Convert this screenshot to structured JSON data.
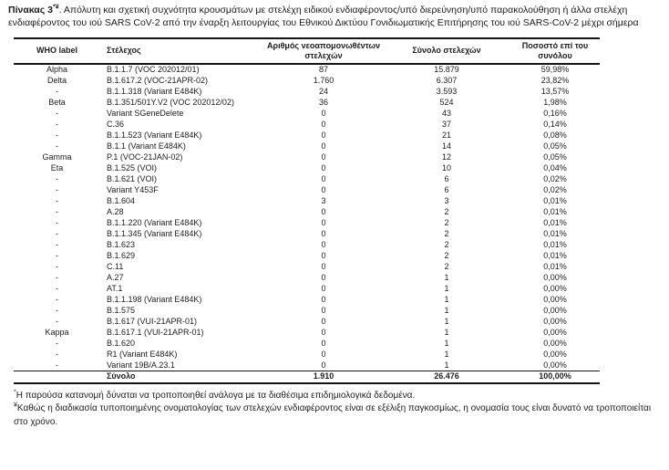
{
  "title": {
    "prefix": "Πίνακας 3",
    "sup": "*¥",
    "rest": ". Απόλυτη και σχετική συχνότητα κρουσμάτων με στελέχη ειδικού ενδιαφέροντος/υπό διερεύνηση/υπό παρακολούθηση ή άλλα στελέχη ενδιαφέροντος του ιού SARS CoV-2 από την έναρξη λειτουργίας του Εθνικού Δικτύου Γονιδιωματικής Επιτήρησης του ιού SARS-CoV-2 μέχρι σήμερα"
  },
  "table": {
    "columns": [
      "WHO label",
      "Στέλεχος",
      "Αριθμός νεοαπομονωθέντων στελεχών",
      "Σύνολο στελεχών",
      "Ποσοστό επί του συνόλου"
    ],
    "rows": [
      [
        "Alpha",
        "B.1.1.7 (VOC 202012/01)",
        "87",
        "15.879",
        "59,98%"
      ],
      [
        "Delta",
        "B.1.617.2 (VOC-21APR-02)",
        "1.760",
        "6.307",
        "23,82%"
      ],
      [
        "-",
        "B.1.1.318 (Variant E484K)",
        "24",
        "3.593",
        "13,57%"
      ],
      [
        "Beta",
        "B.1.351/501Y.V2 (VOC 202012/02)",
        "36",
        "524",
        "1,98%"
      ],
      [
        "-",
        "Variant SGeneDelete",
        "0",
        "43",
        "0,16%"
      ],
      [
        "-",
        "C.36",
        "0",
        "37",
        "0,14%"
      ],
      [
        "-",
        "B.1.1.523 (Variant E484K)",
        "0",
        "21",
        "0,08%"
      ],
      [
        "-",
        "B.1.1 (Variant E484K)",
        "0",
        "14",
        "0,05%"
      ],
      [
        "Gamma",
        "P.1 (VOC-21JAN-02)",
        "0",
        "12",
        "0,05%"
      ],
      [
        "Eta",
        "B.1.525 (VOI)",
        "0",
        "10",
        "0,04%"
      ],
      [
        "-",
        "B.1.621 (VOI)",
        "0",
        "6",
        "0,02%"
      ],
      [
        "-",
        "Variant Y453F",
        "0",
        "6",
        "0,02%"
      ],
      [
        "-",
        "B.1.604",
        "3",
        "3",
        "0,01%"
      ],
      [
        "-",
        "A.28",
        "0",
        "2",
        "0,01%"
      ],
      [
        "-",
        "B.1.1.220 (Variant E484K)",
        "0",
        "2",
        "0,01%"
      ],
      [
        "-",
        "B.1.1.345 (Variant E484K)",
        "0",
        "2",
        "0,01%"
      ],
      [
        "-",
        "B.1.623",
        "0",
        "2",
        "0,01%"
      ],
      [
        "-",
        "B.1.629",
        "0",
        "2",
        "0,01%"
      ],
      [
        "-",
        "C.11",
        "0",
        "2",
        "0,01%"
      ],
      [
        "-",
        "A.27",
        "0",
        "1",
        "0,00%"
      ],
      [
        "-",
        "AT.1",
        "0",
        "1",
        "0,00%"
      ],
      [
        "-",
        "B.1.1.198 (Variant E484K)",
        "0",
        "1",
        "0,00%"
      ],
      [
        "-",
        "B.1.575",
        "0",
        "1",
        "0,00%"
      ],
      [
        "-",
        "B.1.617 (VUI-21APR-01)",
        "0",
        "1",
        "0,00%"
      ],
      [
        "Kappa",
        "B.1.617.1 (VUI-21APR-01)",
        "0",
        "1",
        "0,00%"
      ],
      [
        "-",
        "B.1.620",
        "0",
        "1",
        "0,00%"
      ],
      [
        "-",
        "R1 (Variant E484K)",
        "0",
        "1",
        "0,00%"
      ],
      [
        "-",
        "Variant 19B/A.23.1",
        "0",
        "1",
        "0,00%"
      ]
    ],
    "total": {
      "label": "Σύνολο",
      "new_isolates": "1.910",
      "total_strains": "26.476",
      "percent": "100,00%"
    }
  },
  "footnotes": [
    {
      "sup": "*",
      "text": "Η παρούσα κατανομή δύναται να τροποποιηθεί ανάλογα με τα διαθέσιμα επιδημιολογικά δεδομένα."
    },
    {
      "sup": "¥",
      "text": "Καθώς η διαδικασία τυποποιημένης ονοματολογίας των στελεχών ενδιαφέροντος είναι σε εξέλιξη παγκοσμίως, η ονομασία τους είναι δυνατό να τροποποιείται στο χρόνο."
    }
  ]
}
